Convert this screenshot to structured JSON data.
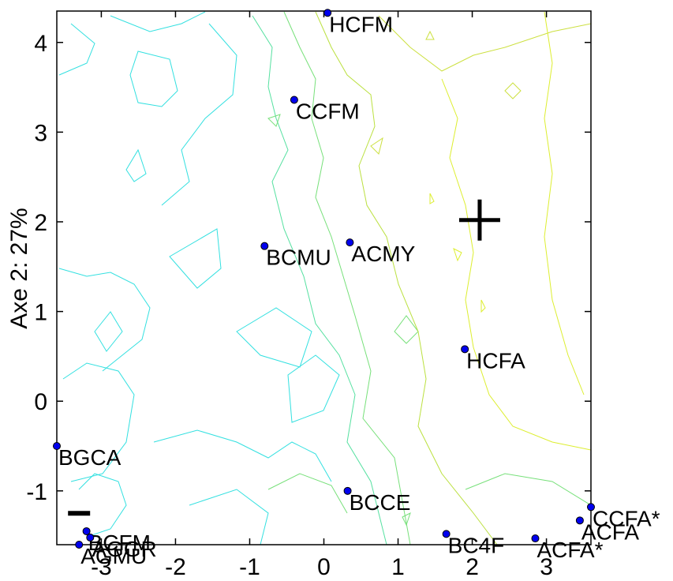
{
  "chart_data": {
    "type": "scatter",
    "title": "",
    "xlabel": "",
    "ylabel": "Axe 2: 27%",
    "xlim": [
      -3.6,
      3.6
    ],
    "ylim": [
      -1.6,
      4.35
    ],
    "x_ticks": [
      -3,
      -2,
      -1,
      0,
      1,
      2,
      3
    ],
    "y_ticks": [
      -1,
      0,
      1,
      2,
      3,
      4
    ],
    "grid": false,
    "legend": "none",
    "point_color": "#0000ee",
    "markers": [
      {
        "symbol": "+",
        "x": 2.1,
        "y": 2.02
      },
      {
        "symbol": "−",
        "x": -3.3,
        "y": -1.25
      }
    ],
    "points": [
      {
        "label": "HCFM",
        "x": 0.05,
        "y": 4.33
      },
      {
        "label": "CCFM",
        "x": -0.4,
        "y": 3.36
      },
      {
        "label": "BCMU",
        "x": -0.8,
        "y": 1.73
      },
      {
        "label": "ACMY",
        "x": 0.35,
        "y": 1.77
      },
      {
        "label": "HCFA",
        "x": 1.9,
        "y": 0.58
      },
      {
        "label": "BGCA",
        "x": -3.6,
        "y": -0.5
      },
      {
        "label": "BCCE",
        "x": 0.32,
        "y": -1.0
      },
      {
        "label": "BCFM",
        "x": -3.2,
        "y": -1.45
      },
      {
        "label": "AGGR",
        "x": -3.15,
        "y": -1.52
      },
      {
        "label": "AGMU",
        "x": -3.3,
        "y": -1.6
      },
      {
        "label": "BC4F",
        "x": 1.65,
        "y": -1.48
      },
      {
        "label": "ACFA*",
        "x": 2.85,
        "y": -1.53
      },
      {
        "label": "ACFA",
        "x": 3.45,
        "y": -1.33
      },
      {
        "label": "CCFA*",
        "x": 3.6,
        "y": -1.18
      }
    ]
  }
}
